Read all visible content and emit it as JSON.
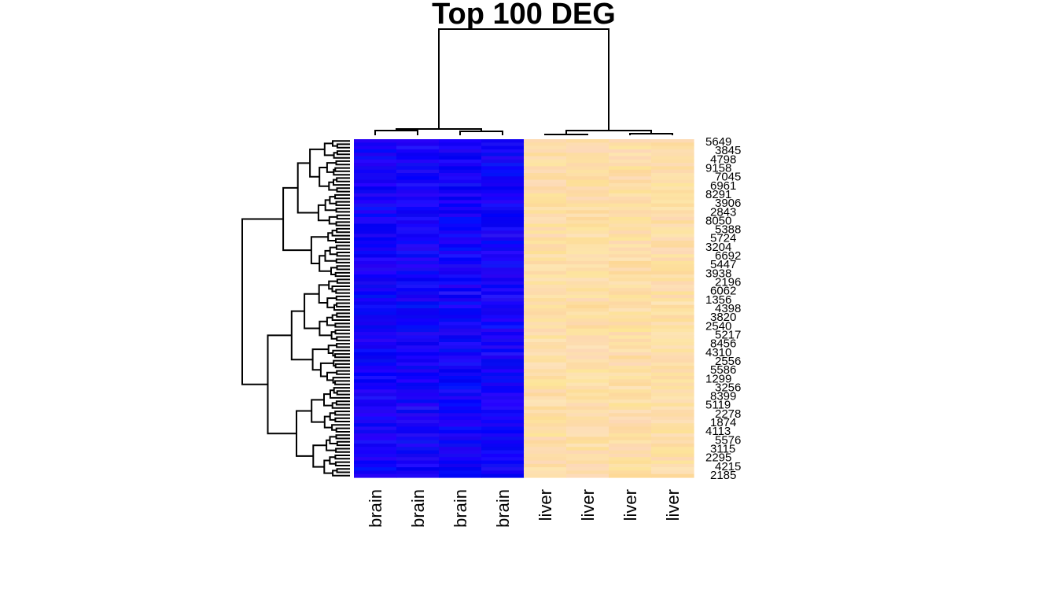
{
  "chart_data": {
    "type": "heatmap",
    "title": "Top 100 DEG",
    "columns": [
      "brain",
      "brain",
      "brain",
      "brain",
      "liver",
      "liver",
      "liver",
      "liver"
    ],
    "row_count": 100,
    "row_labels": [
      "5649",
      "3845",
      "4798",
      "9158",
      "7045",
      "6961",
      "8291",
      "3906",
      "2843",
      "8050",
      "5388",
      "5724",
      "3204",
      "6692",
      "5447",
      "3938",
      "2196",
      "6062",
      "1356",
      "4398",
      "3820",
      "2540",
      "5217",
      "8456",
      "4310",
      "2556",
      "5586",
      "1299",
      "3256",
      "8399",
      "5119",
      "2278",
      "1874",
      "4113",
      "5576",
      "3115",
      "2295",
      "4215",
      "2185"
    ],
    "colors": {
      "low": "#0000ff",
      "low_alt": "#2200f0",
      "high": "#fde0b0",
      "high_alt": "#fbd89c",
      "dendrogram": "#000000"
    }
  }
}
